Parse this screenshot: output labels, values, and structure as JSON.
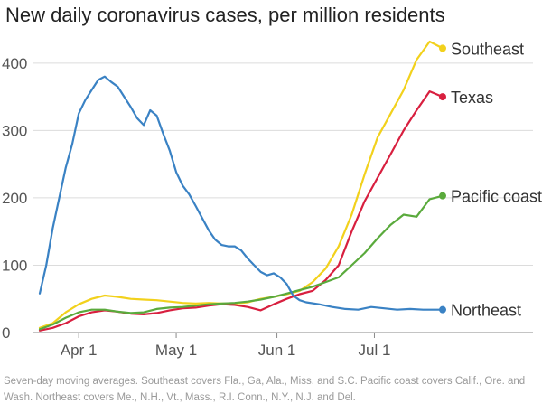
{
  "chart_data": {
    "type": "line",
    "title": "New daily coronavirus cases, per million residents",
    "xlabel": "",
    "ylabel": "",
    "x_ticks": [
      {
        "date": "2020-04-01",
        "label": "Apr 1"
      },
      {
        "date": "2020-05-01",
        "label": "May 1"
      },
      {
        "date": "2020-06-01",
        "label": "Jun 1"
      },
      {
        "date": "2020-07-01",
        "label": "Jul 1"
      }
    ],
    "y_ticks": [
      0,
      100,
      200,
      300,
      400
    ],
    "ylim": [
      0,
      440
    ],
    "xlim": [
      "2020-03-20",
      "2020-07-22"
    ],
    "grid": "horizontal",
    "legend": "direct labels at line ends",
    "series": [
      {
        "name": "Southeast",
        "color": "#f2d11c",
        "points": [
          [
            "2020-03-20",
            7
          ],
          [
            "2020-03-24",
            14
          ],
          [
            "2020-03-28",
            30
          ],
          [
            "2020-04-01",
            42
          ],
          [
            "2020-04-05",
            50
          ],
          [
            "2020-04-09",
            55
          ],
          [
            "2020-04-13",
            53
          ],
          [
            "2020-04-17",
            50
          ],
          [
            "2020-04-21",
            49
          ],
          [
            "2020-04-25",
            48
          ],
          [
            "2020-04-29",
            46
          ],
          [
            "2020-05-03",
            44
          ],
          [
            "2020-05-07",
            43
          ],
          [
            "2020-05-11",
            44
          ],
          [
            "2020-05-15",
            43
          ],
          [
            "2020-05-19",
            43
          ],
          [
            "2020-05-23",
            45
          ],
          [
            "2020-05-27",
            50
          ],
          [
            "2020-05-31",
            53
          ],
          [
            "2020-06-04",
            57
          ],
          [
            "2020-06-08",
            62
          ],
          [
            "2020-06-12",
            75
          ],
          [
            "2020-06-16",
            95
          ],
          [
            "2020-06-20",
            128
          ],
          [
            "2020-06-24",
            175
          ],
          [
            "2020-06-28",
            235
          ],
          [
            "2020-07-02",
            290
          ],
          [
            "2020-07-06",
            325
          ],
          [
            "2020-07-10",
            360
          ],
          [
            "2020-07-14",
            405
          ],
          [
            "2020-07-18",
            432
          ],
          [
            "2020-07-22",
            422
          ]
        ]
      },
      {
        "name": "Texas",
        "color": "#d81f3f",
        "points": [
          [
            "2020-03-20",
            3
          ],
          [
            "2020-03-24",
            7
          ],
          [
            "2020-03-28",
            14
          ],
          [
            "2020-04-01",
            24
          ],
          [
            "2020-04-05",
            30
          ],
          [
            "2020-04-09",
            33
          ],
          [
            "2020-04-13",
            31
          ],
          [
            "2020-04-17",
            28
          ],
          [
            "2020-04-21",
            27
          ],
          [
            "2020-04-25",
            29
          ],
          [
            "2020-04-29",
            33
          ],
          [
            "2020-05-03",
            36
          ],
          [
            "2020-05-07",
            37
          ],
          [
            "2020-05-11",
            40
          ],
          [
            "2020-05-15",
            42
          ],
          [
            "2020-05-19",
            41
          ],
          [
            "2020-05-23",
            38
          ],
          [
            "2020-05-27",
            33
          ],
          [
            "2020-05-31",
            42
          ],
          [
            "2020-06-04",
            50
          ],
          [
            "2020-06-08",
            57
          ],
          [
            "2020-06-12",
            62
          ],
          [
            "2020-06-16",
            78
          ],
          [
            "2020-06-20",
            100
          ],
          [
            "2020-06-24",
            150
          ],
          [
            "2020-06-28",
            195
          ],
          [
            "2020-07-02",
            230
          ],
          [
            "2020-07-06",
            265
          ],
          [
            "2020-07-10",
            300
          ],
          [
            "2020-07-14",
            330
          ],
          [
            "2020-07-18",
            358
          ],
          [
            "2020-07-22",
            350
          ]
        ]
      },
      {
        "name": "Pacific coast",
        "color": "#5aaa3c",
        "points": [
          [
            "2020-03-20",
            5
          ],
          [
            "2020-03-24",
            12
          ],
          [
            "2020-03-28",
            22
          ],
          [
            "2020-04-01",
            30
          ],
          [
            "2020-04-05",
            34
          ],
          [
            "2020-04-09",
            34
          ],
          [
            "2020-04-13",
            31
          ],
          [
            "2020-04-17",
            29
          ],
          [
            "2020-04-21",
            30
          ],
          [
            "2020-04-25",
            35
          ],
          [
            "2020-04-29",
            37
          ],
          [
            "2020-05-03",
            38
          ],
          [
            "2020-05-07",
            40
          ],
          [
            "2020-05-11",
            42
          ],
          [
            "2020-05-15",
            43
          ],
          [
            "2020-05-19",
            44
          ],
          [
            "2020-05-23",
            46
          ],
          [
            "2020-05-27",
            49
          ],
          [
            "2020-05-31",
            53
          ],
          [
            "2020-06-04",
            58
          ],
          [
            "2020-06-08",
            63
          ],
          [
            "2020-06-12",
            68
          ],
          [
            "2020-06-16",
            75
          ],
          [
            "2020-06-20",
            82
          ],
          [
            "2020-06-24",
            100
          ],
          [
            "2020-06-28",
            118
          ],
          [
            "2020-07-02",
            140
          ],
          [
            "2020-07-06",
            160
          ],
          [
            "2020-07-10",
            175
          ],
          [
            "2020-07-14",
            172
          ],
          [
            "2020-07-18",
            198
          ],
          [
            "2020-07-22",
            203
          ]
        ]
      },
      {
        "name": "Northeast",
        "color": "#3a82c4",
        "points": [
          [
            "2020-03-20",
            58
          ],
          [
            "2020-03-22",
            100
          ],
          [
            "2020-03-24",
            155
          ],
          [
            "2020-03-26",
            200
          ],
          [
            "2020-03-28",
            245
          ],
          [
            "2020-03-30",
            280
          ],
          [
            "2020-04-01",
            325
          ],
          [
            "2020-04-03",
            345
          ],
          [
            "2020-04-05",
            360
          ],
          [
            "2020-04-07",
            375
          ],
          [
            "2020-04-09",
            380
          ],
          [
            "2020-04-11",
            372
          ],
          [
            "2020-04-13",
            365
          ],
          [
            "2020-04-15",
            350
          ],
          [
            "2020-04-17",
            335
          ],
          [
            "2020-04-19",
            318
          ],
          [
            "2020-04-21",
            308
          ],
          [
            "2020-04-23",
            330
          ],
          [
            "2020-04-25",
            322
          ],
          [
            "2020-04-27",
            295
          ],
          [
            "2020-04-29",
            270
          ],
          [
            "2020-05-01",
            238
          ],
          [
            "2020-05-03",
            218
          ],
          [
            "2020-05-05",
            205
          ],
          [
            "2020-05-07",
            188
          ],
          [
            "2020-05-09",
            170
          ],
          [
            "2020-05-11",
            152
          ],
          [
            "2020-05-13",
            138
          ],
          [
            "2020-05-15",
            130
          ],
          [
            "2020-05-17",
            128
          ],
          [
            "2020-05-19",
            128
          ],
          [
            "2020-05-21",
            122
          ],
          [
            "2020-05-23",
            110
          ],
          [
            "2020-05-25",
            100
          ],
          [
            "2020-05-27",
            90
          ],
          [
            "2020-05-29",
            85
          ],
          [
            "2020-05-31",
            88
          ],
          [
            "2020-06-02",
            82
          ],
          [
            "2020-06-04",
            72
          ],
          [
            "2020-06-06",
            55
          ],
          [
            "2020-06-08",
            48
          ],
          [
            "2020-06-10",
            45
          ],
          [
            "2020-06-14",
            42
          ],
          [
            "2020-06-18",
            38
          ],
          [
            "2020-06-22",
            35
          ],
          [
            "2020-06-26",
            34
          ],
          [
            "2020-06-30",
            38
          ],
          [
            "2020-07-04",
            36
          ],
          [
            "2020-07-08",
            34
          ],
          [
            "2020-07-12",
            35
          ],
          [
            "2020-07-16",
            34
          ],
          [
            "2020-07-22",
            34
          ]
        ]
      }
    ]
  },
  "footnote": "Seven-day moving averages. Southeast covers Fla., Ga, Ala., Miss. and S.C. Pacific coast covers Calif., Ore. and Wash. Northeast covers Me., N.H., Vt., Mass., R.I. Conn., N.Y., N.J. and Del."
}
